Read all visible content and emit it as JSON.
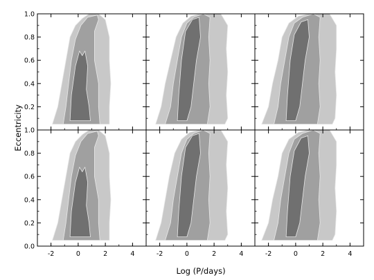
{
  "chart_data": {
    "type": "contour",
    "layout": "2x3 grid of panels, shared axes",
    "xlabel": "Log (P/days)",
    "ylabel": "Eccentricity",
    "xlim": [
      -3,
      5
    ],
    "ylim": [
      0.0,
      1.0
    ],
    "x_ticks": [
      -2,
      0,
      2,
      4
    ],
    "y_ticks": [
      0.2,
      0.4,
      0.6,
      0.8,
      1.0
    ],
    "y_ticks_bottom_row": [
      0.0,
      0.2,
      0.4,
      0.6,
      0.8,
      1.0
    ],
    "levels": [
      "outer",
      "middle",
      "inner"
    ],
    "colors": {
      "outer": "#c8c8c8",
      "middle": "#a0a0a0",
      "inner": "#707070",
      "contour_line": "#e8e8e8"
    },
    "panels": [
      {
        "row": 1,
        "col": 1,
        "outer": [
          [
            -1.9,
            0.05
          ],
          [
            -1.5,
            0.2
          ],
          [
            -1.2,
            0.4
          ],
          [
            -0.9,
            0.6
          ],
          [
            -0.6,
            0.8
          ],
          [
            -0.2,
            0.9
          ],
          [
            0.3,
            0.96
          ],
          [
            0.8,
            1.0
          ],
          [
            1.5,
            1.0
          ],
          [
            2.0,
            0.95
          ],
          [
            2.3,
            0.8
          ],
          [
            2.3,
            0.6
          ],
          [
            2.4,
            0.4
          ],
          [
            2.3,
            0.2
          ],
          [
            2.3,
            0.05
          ]
        ],
        "middle": [
          [
            -1.1,
            0.05
          ],
          [
            -0.9,
            0.2
          ],
          [
            -0.7,
            0.4
          ],
          [
            -0.5,
            0.6
          ],
          [
            -0.2,
            0.78
          ],
          [
            0.2,
            0.9
          ],
          [
            0.7,
            0.97
          ],
          [
            1.4,
            0.99
          ],
          [
            1.5,
            0.95
          ],
          [
            1.2,
            0.85
          ],
          [
            1.2,
            0.6
          ],
          [
            1.5,
            0.4
          ],
          [
            1.5,
            0.2
          ],
          [
            1.6,
            0.05
          ]
        ],
        "inner": [
          [
            -0.6,
            0.08
          ],
          [
            -0.5,
            0.3
          ],
          [
            -0.2,
            0.55
          ],
          [
            0.1,
            0.68
          ],
          [
            0.3,
            0.64
          ],
          [
            0.5,
            0.68
          ],
          [
            0.7,
            0.55
          ],
          [
            0.6,
            0.35
          ],
          [
            0.8,
            0.2
          ],
          [
            0.9,
            0.08
          ]
        ]
      },
      {
        "row": 1,
        "col": 2,
        "outer": [
          [
            -2.3,
            0.05
          ],
          [
            -1.9,
            0.2
          ],
          [
            -1.6,
            0.4
          ],
          [
            -1.2,
            0.6
          ],
          [
            -0.8,
            0.8
          ],
          [
            -0.3,
            0.92
          ],
          [
            0.3,
            0.98
          ],
          [
            1.0,
            1.0
          ],
          [
            2.5,
            1.0
          ],
          [
            3.0,
            0.9
          ],
          [
            2.9,
            0.7
          ],
          [
            3.0,
            0.5
          ],
          [
            2.9,
            0.3
          ],
          [
            3.0,
            0.1
          ],
          [
            2.8,
            0.05
          ]
        ],
        "middle": [
          [
            -1.6,
            0.05
          ],
          [
            -1.2,
            0.2
          ],
          [
            -1.0,
            0.4
          ],
          [
            -0.7,
            0.6
          ],
          [
            -0.4,
            0.8
          ],
          [
            0.0,
            0.92
          ],
          [
            0.5,
            0.97
          ],
          [
            1.2,
            1.0
          ],
          [
            1.7,
            0.97
          ],
          [
            1.6,
            0.8
          ],
          [
            1.7,
            0.6
          ],
          [
            1.6,
            0.4
          ],
          [
            1.7,
            0.2
          ],
          [
            1.5,
            0.05
          ]
        ],
        "inner": [
          [
            -0.7,
            0.08
          ],
          [
            -0.6,
            0.3
          ],
          [
            -0.4,
            0.6
          ],
          [
            -0.1,
            0.85
          ],
          [
            0.4,
            0.95
          ],
          [
            0.9,
            0.97
          ],
          [
            1.0,
            0.8
          ],
          [
            0.7,
            0.6
          ],
          [
            0.5,
            0.4
          ],
          [
            0.3,
            0.2
          ],
          [
            0.0,
            0.08
          ]
        ]
      },
      {
        "row": 1,
        "col": 3,
        "outer": [
          [
            -2.5,
            0.05
          ],
          [
            -2.0,
            0.2
          ],
          [
            -1.7,
            0.4
          ],
          [
            -1.3,
            0.6
          ],
          [
            -1.0,
            0.8
          ],
          [
            -0.5,
            0.92
          ],
          [
            0.2,
            0.98
          ],
          [
            1.0,
            1.0
          ],
          [
            2.5,
            1.0
          ],
          [
            3.0,
            0.9
          ],
          [
            3.0,
            0.7
          ],
          [
            2.9,
            0.5
          ],
          [
            3.0,
            0.3
          ],
          [
            2.9,
            0.1
          ],
          [
            2.7,
            0.05
          ]
        ],
        "middle": [
          [
            -1.6,
            0.05
          ],
          [
            -1.3,
            0.2
          ],
          [
            -1.1,
            0.4
          ],
          [
            -0.8,
            0.6
          ],
          [
            -0.5,
            0.8
          ],
          [
            -0.1,
            0.92
          ],
          [
            0.5,
            0.97
          ],
          [
            1.3,
            1.0
          ],
          [
            1.8,
            0.97
          ],
          [
            1.7,
            0.8
          ],
          [
            1.8,
            0.6
          ],
          [
            1.7,
            0.4
          ],
          [
            1.8,
            0.2
          ],
          [
            1.6,
            0.05
          ]
        ],
        "inner": [
          [
            -0.7,
            0.08
          ],
          [
            -0.6,
            0.3
          ],
          [
            -0.4,
            0.6
          ],
          [
            -0.1,
            0.82
          ],
          [
            0.4,
            0.93
          ],
          [
            0.9,
            0.95
          ],
          [
            1.0,
            0.8
          ],
          [
            0.7,
            0.6
          ],
          [
            0.5,
            0.4
          ],
          [
            0.3,
            0.2
          ],
          [
            0.0,
            0.08
          ]
        ]
      },
      {
        "row": 2,
        "col": 1,
        "outer": [
          [
            -1.9,
            0.05
          ],
          [
            -1.5,
            0.2
          ],
          [
            -1.2,
            0.4
          ],
          [
            -0.9,
            0.6
          ],
          [
            -0.6,
            0.8
          ],
          [
            -0.2,
            0.9
          ],
          [
            0.3,
            0.96
          ],
          [
            0.8,
            1.0
          ],
          [
            1.5,
            1.0
          ],
          [
            2.0,
            0.95
          ],
          [
            2.3,
            0.8
          ],
          [
            2.3,
            0.6
          ],
          [
            2.4,
            0.4
          ],
          [
            2.3,
            0.2
          ],
          [
            2.3,
            0.05
          ]
        ],
        "middle": [
          [
            -1.1,
            0.05
          ],
          [
            -0.9,
            0.2
          ],
          [
            -0.7,
            0.4
          ],
          [
            -0.5,
            0.6
          ],
          [
            -0.2,
            0.78
          ],
          [
            0.2,
            0.9
          ],
          [
            0.7,
            0.97
          ],
          [
            1.4,
            0.99
          ],
          [
            1.5,
            0.95
          ],
          [
            1.2,
            0.85
          ],
          [
            1.2,
            0.6
          ],
          [
            1.5,
            0.4
          ],
          [
            1.5,
            0.2
          ],
          [
            1.6,
            0.05
          ]
        ],
        "inner": [
          [
            -0.6,
            0.08
          ],
          [
            -0.5,
            0.3
          ],
          [
            -0.2,
            0.55
          ],
          [
            0.1,
            0.68
          ],
          [
            0.3,
            0.64
          ],
          [
            0.5,
            0.68
          ],
          [
            0.7,
            0.55
          ],
          [
            0.6,
            0.35
          ],
          [
            0.8,
            0.2
          ],
          [
            0.9,
            0.08
          ]
        ]
      },
      {
        "row": 2,
        "col": 2,
        "outer": [
          [
            -2.3,
            0.05
          ],
          [
            -1.9,
            0.2
          ],
          [
            -1.6,
            0.4
          ],
          [
            -1.3,
            0.6
          ],
          [
            -0.9,
            0.8
          ],
          [
            -0.4,
            0.92
          ],
          [
            0.2,
            0.98
          ],
          [
            1.0,
            1.0
          ],
          [
            2.5,
            1.0
          ],
          [
            3.0,
            0.9
          ],
          [
            2.9,
            0.7
          ],
          [
            3.0,
            0.5
          ],
          [
            2.9,
            0.3
          ],
          [
            3.0,
            0.1
          ],
          [
            2.8,
            0.05
          ]
        ],
        "middle": [
          [
            -1.6,
            0.05
          ],
          [
            -1.2,
            0.2
          ],
          [
            -1.0,
            0.4
          ],
          [
            -0.7,
            0.6
          ],
          [
            -0.4,
            0.8
          ],
          [
            0.0,
            0.92
          ],
          [
            0.5,
            0.97
          ],
          [
            1.2,
            1.0
          ],
          [
            1.7,
            0.97
          ],
          [
            1.6,
            0.8
          ],
          [
            1.7,
            0.6
          ],
          [
            1.6,
            0.4
          ],
          [
            1.7,
            0.2
          ],
          [
            1.5,
            0.05
          ]
        ],
        "inner": [
          [
            -0.7,
            0.08
          ],
          [
            -0.6,
            0.3
          ],
          [
            -0.4,
            0.6
          ],
          [
            -0.1,
            0.85
          ],
          [
            0.4,
            0.95
          ],
          [
            0.9,
            0.97
          ],
          [
            1.0,
            0.8
          ],
          [
            0.7,
            0.6
          ],
          [
            0.5,
            0.4
          ],
          [
            0.3,
            0.2
          ],
          [
            0.0,
            0.08
          ]
        ]
      },
      {
        "row": 2,
        "col": 3,
        "outer": [
          [
            -2.5,
            0.05
          ],
          [
            -2.0,
            0.2
          ],
          [
            -1.7,
            0.4
          ],
          [
            -1.3,
            0.6
          ],
          [
            -1.0,
            0.8
          ],
          [
            -0.5,
            0.92
          ],
          [
            0.2,
            0.98
          ],
          [
            1.0,
            1.0
          ],
          [
            2.5,
            1.0
          ],
          [
            3.0,
            0.9
          ],
          [
            3.0,
            0.7
          ],
          [
            2.9,
            0.5
          ],
          [
            3.0,
            0.3
          ],
          [
            2.9,
            0.1
          ],
          [
            2.7,
            0.05
          ]
        ],
        "middle": [
          [
            -1.6,
            0.05
          ],
          [
            -1.3,
            0.2
          ],
          [
            -1.1,
            0.4
          ],
          [
            -0.8,
            0.6
          ],
          [
            -0.5,
            0.8
          ],
          [
            -0.1,
            0.92
          ],
          [
            0.5,
            0.97
          ],
          [
            1.3,
            1.0
          ],
          [
            1.8,
            0.97
          ],
          [
            1.7,
            0.8
          ],
          [
            1.8,
            0.6
          ],
          [
            1.7,
            0.4
          ],
          [
            1.8,
            0.2
          ],
          [
            1.6,
            0.05
          ]
        ],
        "inner": [
          [
            -0.7,
            0.08
          ],
          [
            -0.6,
            0.3
          ],
          [
            -0.4,
            0.6
          ],
          [
            -0.1,
            0.82
          ],
          [
            0.4,
            0.93
          ],
          [
            0.9,
            0.95
          ],
          [
            1.0,
            0.8
          ],
          [
            0.7,
            0.6
          ],
          [
            0.5,
            0.4
          ],
          [
            0.3,
            0.2
          ],
          [
            0.0,
            0.08
          ]
        ]
      }
    ]
  }
}
